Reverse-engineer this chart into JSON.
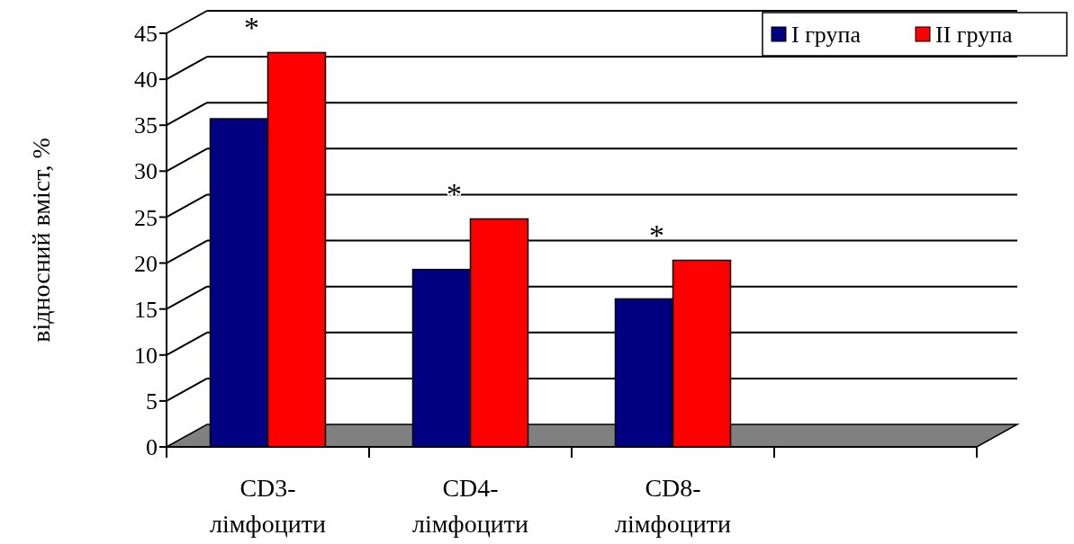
{
  "chart_data": {
    "type": "bar",
    "ylabel": "відносний вміст, %",
    "categories": [
      "CD3-\nлімфоцити",
      "CD4-\nлімфоцити",
      "CD8-\nлімфоцити",
      null
    ],
    "series": [
      {
        "name": "I група",
        "color": "#000080",
        "values": [
          35.7,
          19.3,
          16.1,
          null
        ]
      },
      {
        "name": "II група",
        "color": "#ff0000",
        "values": [
          42.9,
          24.8,
          20.3,
          null
        ]
      }
    ],
    "ylim": [
      0,
      45
    ],
    "yticks": [
      0,
      5,
      10,
      15,
      20,
      25,
      30,
      35,
      40,
      45
    ],
    "grid": "y",
    "legend": "top right",
    "annotations": [
      "*",
      "*",
      "*"
    ]
  }
}
